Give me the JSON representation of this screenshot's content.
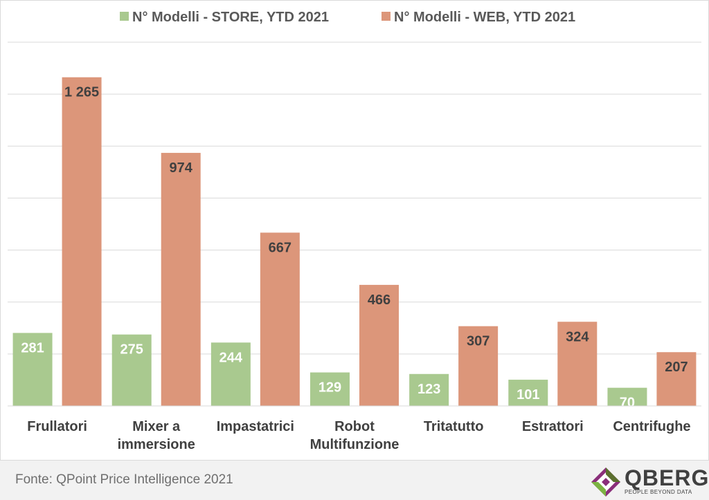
{
  "source": "Fonte: QPoint Price Intelligence 2021",
  "logo": {
    "name": "QBERG",
    "tagline": "PEOPLE BEYOND DATA"
  },
  "colors": {
    "store": "#a9c98f",
    "web": "#dc967a",
    "grid": "#d9d9d9"
  },
  "chart_data": {
    "type": "bar",
    "categories": [
      [
        "Frullatori"
      ],
      [
        "Mixer a",
        "immersione"
      ],
      [
        "Impastatrici"
      ],
      [
        "Robot",
        "Multifunzione"
      ],
      [
        "Tritatutto"
      ],
      [
        "Estrattori"
      ],
      [
        "Centrifughe"
      ]
    ],
    "series": [
      {
        "name": "N° Modelli - STORE, YTD 2021",
        "values": [
          281,
          275,
          244,
          129,
          123,
          101,
          70
        ],
        "labels": [
          "281",
          "275",
          "244",
          "129",
          "123",
          "101",
          "70"
        ]
      },
      {
        "name": "N° Modelli - WEB, YTD 2021",
        "values": [
          1265,
          974,
          667,
          466,
          307,
          324,
          207
        ],
        "labels": [
          "1 265",
          "974",
          "667",
          "466",
          "307",
          "324",
          "207"
        ]
      }
    ],
    "ylim": [
      0,
      1400
    ],
    "gridlines": [
      0,
      200,
      400,
      600,
      800,
      1000,
      1200,
      1400
    ],
    "legend_position": "top",
    "grid": true
  }
}
